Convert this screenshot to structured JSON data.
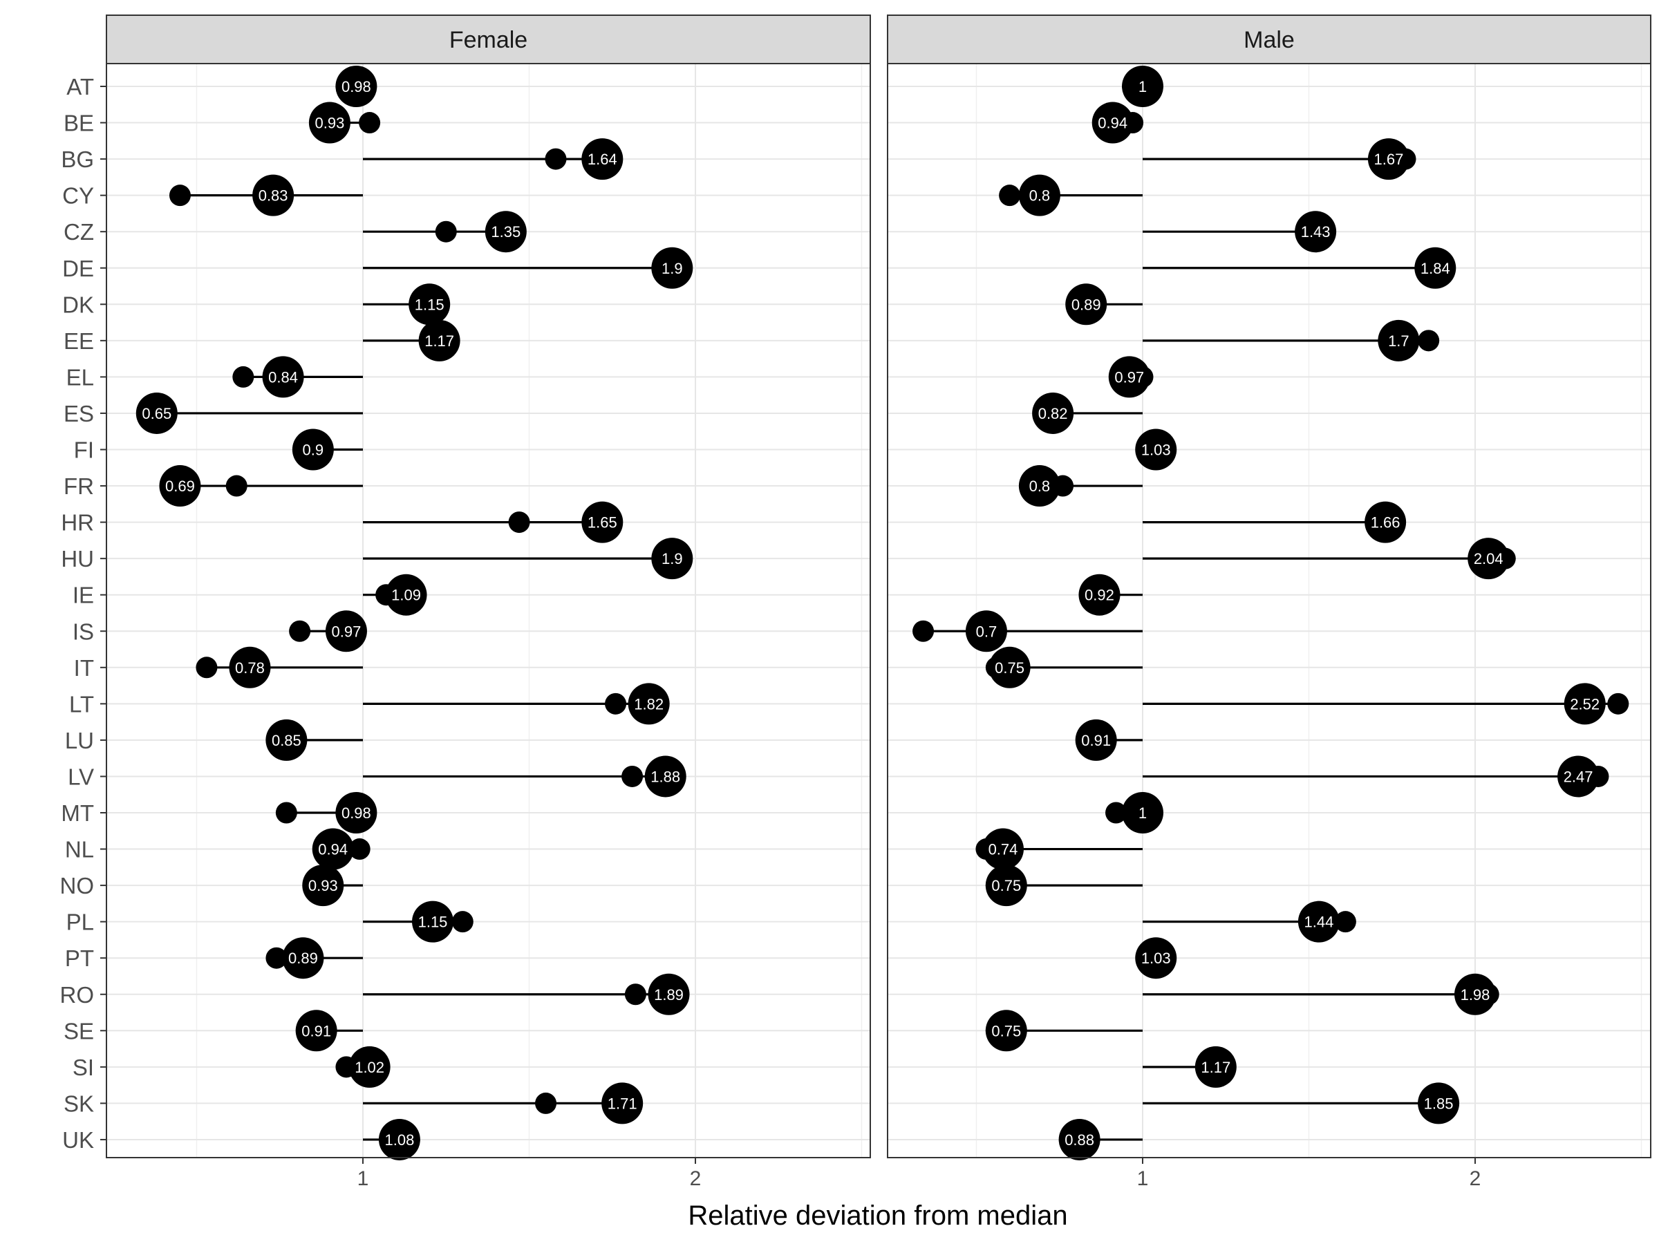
{
  "chart_data": {
    "type": "scatter",
    "subtype": "dumbbell-facet",
    "xlabel": "Relative deviation from median",
    "ylabel": "",
    "xlim": [
      0.23,
      2.53
    ],
    "xticks": [
      1,
      2
    ],
    "xtick_labels": [
      "1",
      "2"
    ],
    "grid": true,
    "legend": "none",
    "baseline": 1,
    "colors": {
      "marks": "#000000",
      "label_text": "#ffffff",
      "strip": "#d9d9d9"
    },
    "categories": [
      "AT",
      "BE",
      "BG",
      "CY",
      "CZ",
      "DE",
      "DK",
      "EE",
      "EL",
      "ES",
      "FI",
      "FR",
      "HR",
      "HU",
      "IE",
      "IS",
      "IT",
      "LT",
      "LU",
      "LV",
      "MT",
      "NL",
      "NO",
      "PL",
      "PT",
      "RO",
      "SE",
      "SI",
      "SK",
      "UK"
    ],
    "panels": [
      {
        "name": "Female",
        "labels": [
          "0.98",
          "0.93",
          "1.64",
          "0.83",
          "1.35",
          "1.9",
          "1.15",
          "1.17",
          "0.84",
          "0.65",
          "0.9",
          "0.69",
          "1.65",
          "1.9",
          "1.09",
          "0.97",
          "0.78",
          "1.82",
          "0.85",
          "1.88",
          "0.98",
          "0.94",
          "0.93",
          "1.15",
          "0.89",
          "1.89",
          "0.91",
          "1.02",
          "1.71",
          "1.08"
        ],
        "large_point_x": [
          0.98,
          0.9,
          1.72,
          0.73,
          1.43,
          1.93,
          1.2,
          1.23,
          0.76,
          0.38,
          0.85,
          0.45,
          1.72,
          1.93,
          1.13,
          0.95,
          0.66,
          1.86,
          0.77,
          1.91,
          0.98,
          0.91,
          0.88,
          1.21,
          0.82,
          1.92,
          0.86,
          1.02,
          1.78,
          1.11
        ],
        "small_point_x": [
          1.0,
          1.02,
          1.58,
          0.45,
          1.25,
          1.93,
          1.18,
          1.22,
          0.64,
          0.38,
          0.85,
          0.62,
          1.47,
          1.93,
          1.07,
          0.81,
          0.53,
          1.76,
          0.77,
          1.81,
          0.77,
          0.99,
          0.88,
          1.3,
          0.74,
          1.82,
          0.86,
          0.95,
          1.55,
          1.11
        ]
      },
      {
        "name": "Male",
        "labels": [
          "1",
          "0.94",
          "1.67",
          "0.8",
          "1.43",
          "1.84",
          "0.89",
          "1.7",
          "0.97",
          "0.82",
          "1.03",
          "0.8",
          "1.66",
          "2.04",
          "0.92",
          "0.7",
          "0.75",
          "2.52",
          "0.91",
          "2.47",
          "1",
          "0.74",
          "0.75",
          "1.44",
          "1.03",
          "1.98",
          "0.75",
          "1.17",
          "1.85",
          "0.88"
        ],
        "large_point_x": [
          1.0,
          0.91,
          1.74,
          0.69,
          1.52,
          1.88,
          0.83,
          1.77,
          0.96,
          0.73,
          1.04,
          0.69,
          1.73,
          2.04,
          0.87,
          0.53,
          0.6,
          2.33,
          0.86,
          2.31,
          1.0,
          0.58,
          0.59,
          1.53,
          1.04,
          2.0,
          0.59,
          1.22,
          1.89,
          0.81
        ],
        "small_point_x": [
          1.0,
          0.97,
          1.79,
          0.6,
          1.52,
          1.88,
          0.83,
          1.86,
          1.0,
          0.73,
          1.04,
          0.76,
          1.73,
          2.09,
          0.85,
          0.34,
          0.56,
          2.43,
          0.86,
          2.37,
          0.92,
          0.53,
          0.56,
          1.61,
          1.04,
          2.04,
          0.56,
          1.22,
          1.89,
          0.81
        ]
      }
    ]
  }
}
